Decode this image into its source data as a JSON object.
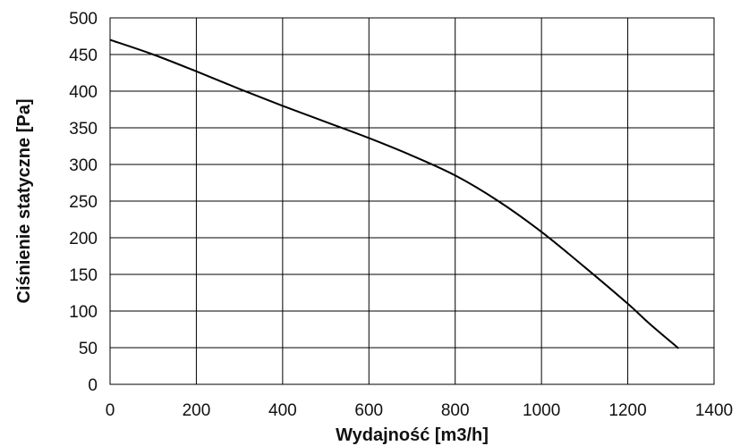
{
  "chart_data": {
    "type": "line",
    "title": "",
    "xlabel": "Wydajność [m3/h]",
    "ylabel": "Ciśnienie statyczne [Pa]",
    "xlim": [
      0,
      1400
    ],
    "ylim": [
      0,
      500
    ],
    "xticks": [
      "0",
      "200",
      "400",
      "600",
      "800",
      "1000",
      "1200",
      "1400"
    ],
    "yticks": [
      "0",
      "50",
      "100",
      "150",
      "200",
      "250",
      "300",
      "350",
      "400",
      "450",
      "500"
    ],
    "grid": true,
    "legend": "none",
    "series": [
      {
        "color": "#000000",
        "x": [
          0,
          100,
          200,
          300,
          400,
          500,
          600,
          700,
          800,
          900,
          1000,
          1100,
          1200,
          1250,
          1318
        ],
        "y": [
          470,
          450,
          427,
          403,
          380,
          358,
          336,
          312,
          285,
          250,
          208,
          160,
          110,
          83,
          49
        ]
      }
    ]
  }
}
